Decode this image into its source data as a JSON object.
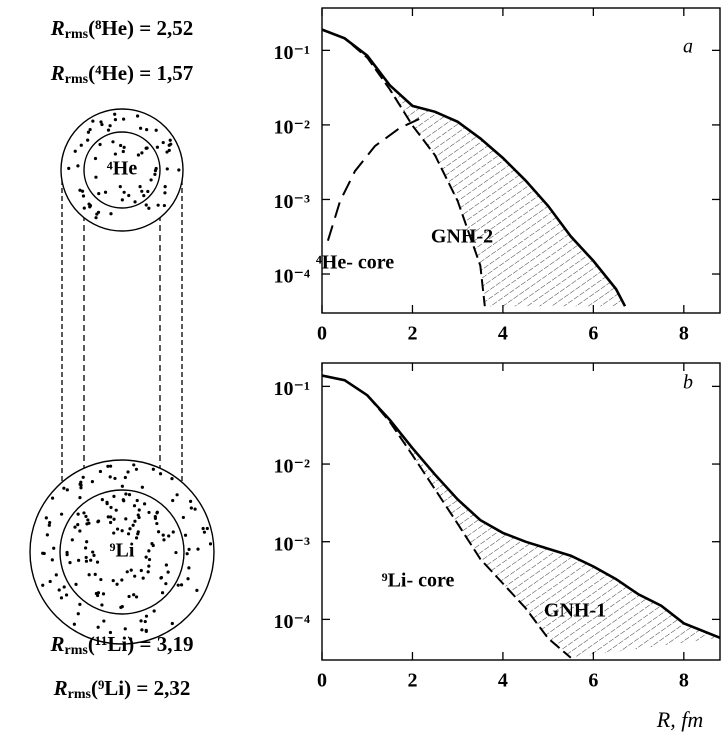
{
  "diagram": {
    "top_formulas": [
      {
        "symbol": "R",
        "sub": "rms",
        "rest": "(⁸He) = 2,52"
      },
      {
        "symbol": "R",
        "sub": "rms",
        "rest": "(⁴He) = 1,57"
      }
    ],
    "bottom_formulas": [
      {
        "symbol": "R",
        "sub": "rms",
        "rest": "(¹¹Li) = 3,19"
      },
      {
        "symbol": "R",
        "sub": "rms",
        "rest": "(⁹Li) = 2,32"
      }
    ],
    "circle_labels": [
      "⁴He",
      "⁹Li"
    ]
  },
  "chart_data": [
    {
      "type": "line",
      "log_y": true,
      "xlim": [
        0,
        8.8
      ],
      "ylim": [
        3e-05,
        0.37
      ],
      "xticks": [
        0,
        2,
        4,
        6,
        8
      ],
      "yticks": [
        {
          "value": 0.1,
          "label": "10⁻¹"
        },
        {
          "value": 0.01,
          "label": "10⁻²"
        },
        {
          "value": 0.001,
          "label": "10⁻³"
        },
        {
          "value": 0.0001,
          "label": "10⁻⁴"
        }
      ],
      "annotations": [
        "a",
        "⁴He- core",
        "GNH-2"
      ],
      "series": [
        {
          "style": "solid",
          "color": "#000000",
          "x": [
            0,
            0.5,
            1,
            1.5,
            2,
            2.5,
            3,
            3.5,
            4,
            4.5,
            5,
            5.5,
            6,
            6.5,
            6.7
          ],
          "values": [
            0.19,
            0.145,
            0.085,
            0.034,
            0.018,
            0.015,
            0.011,
            0.0066,
            0.0036,
            0.0018,
            0.00082,
            0.00032,
            0.00015,
            6.3e-05,
            3.7e-05
          ]
        },
        {
          "style": "dashed",
          "color": "#000000",
          "x": [
            0,
            0.5,
            1,
            1.5,
            2,
            2.5,
            3,
            3.5,
            3.6
          ],
          "values": [
            0.19,
            0.145,
            0.08,
            0.03,
            0.0098,
            0.0039,
            0.00095,
            0.00013,
            3.7e-05
          ]
        },
        {
          "style": "longdash",
          "color": "#000000",
          "x": [
            0.13,
            0.4,
            0.73,
            1.17,
            1.72,
            2.15
          ],
          "values": [
            0.00028,
            0.00095,
            0.0024,
            0.0052,
            0.0091,
            0.012
          ]
        }
      ]
    },
    {
      "type": "line",
      "log_y": true,
      "xlim": [
        0,
        8.8
      ],
      "ylim": [
        3e-05,
        0.2
      ],
      "xlabel": "R, fm",
      "xticks": [
        0,
        2,
        4,
        6,
        8
      ],
      "yticks": [
        {
          "value": 0.1,
          "label": "10⁻¹"
        },
        {
          "value": 0.01,
          "label": "10⁻²"
        },
        {
          "value": 0.001,
          "label": "10⁻³"
        },
        {
          "value": 0.0001,
          "label": "10⁻⁴"
        }
      ],
      "annotations": [
        "b",
        "⁹Li- core",
        "GNH-1"
      ],
      "series": [
        {
          "style": "solid",
          "color": "#000000",
          "x": [
            0,
            0.5,
            1,
            1.5,
            2,
            2.5,
            3,
            3.5,
            4,
            4.5,
            5,
            5.5,
            6,
            6.5,
            7,
            7.5,
            8,
            8.8
          ],
          "values": [
            0.138,
            0.12,
            0.077,
            0.037,
            0.016,
            0.0073,
            0.0035,
            0.0019,
            0.0013,
            0.001,
            0.00081,
            0.00066,
            0.00048,
            0.00033,
            0.00021,
            0.00015,
            8.9e-05,
            5.8e-05
          ]
        },
        {
          "style": "dashed",
          "color": "#000000",
          "x": [
            0,
            0.5,
            1,
            1.5,
            2,
            2.5,
            3,
            3.5,
            4,
            4.5,
            5,
            5.5
          ],
          "values": [
            0.138,
            0.12,
            0.077,
            0.035,
            0.013,
            0.0047,
            0.0017,
            0.0006,
            0.00029,
            0.00014,
            5.7e-05,
            3.2e-05
          ]
        }
      ]
    }
  ]
}
